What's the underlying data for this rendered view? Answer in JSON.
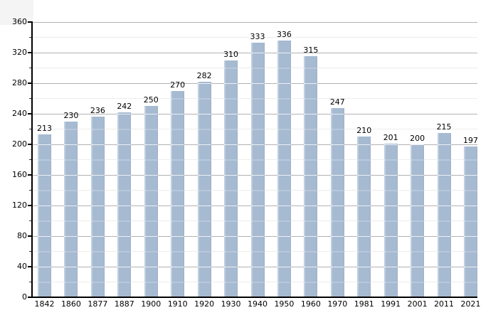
{
  "chart_data": {
    "type": "bar",
    "title": "",
    "xlabel": "",
    "ylabel": "",
    "categories": [
      "1842",
      "1860",
      "1877",
      "1887",
      "1900",
      "1910",
      "1920",
      "1930",
      "1940",
      "1950",
      "1960",
      "1970",
      "1981",
      "1991",
      "2001",
      "2011",
      "2021"
    ],
    "values": [
      213,
      230,
      236,
      242,
      250,
      270,
      282,
      310,
      333,
      336,
      315,
      247,
      210,
      201,
      200,
      215,
      197
    ],
    "ylim": [
      0,
      360
    ],
    "ytick_major": 40,
    "ytick_minor": 20,
    "ytick_labels": [
      "0",
      "40",
      "80",
      "120",
      "160",
      "200",
      "240",
      "280",
      "320",
      "360"
    ],
    "grid": true,
    "legend": false,
    "bar_color": "#a6bad1",
    "major_grid_color": "#b3b3b3",
    "minor_grid_color": "#ededed",
    "axis_color": "#000000",
    "background_color": "#ffffff"
  }
}
